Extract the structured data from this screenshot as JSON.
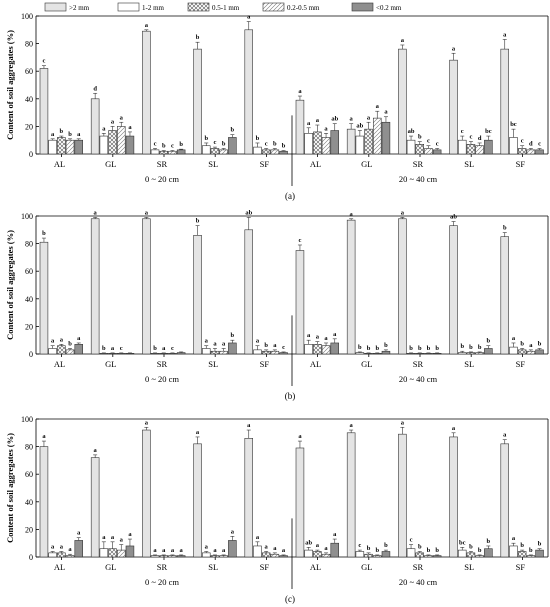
{
  "chart_data": {
    "type": "bar",
    "legend": {
      "placement": "top",
      "entries": [
        ">2 mm",
        "1-2 mm",
        "0.5-1 mm",
        "0.2-0.5 mm",
        "<0.2 mm"
      ]
    },
    "ylabel": "Content of soil aggregates (%)",
    "ylim": [
      0,
      100
    ],
    "yticks": [
      "0",
      "20",
      "40",
      "60",
      "80",
      "100"
    ],
    "categories": [
      "AL",
      "GL",
      "SR",
      "SL",
      "SF",
      "AL",
      "GL",
      "SR",
      "SL",
      "SF"
    ],
    "depth_labels": [
      "0 ~ 20 cm",
      "20 ~ 40 cm"
    ],
    "colors": [
      "#e4e4e4",
      "#ffffff",
      "#d0d0d0",
      "#f2f2f2",
      "#8f8f8f"
    ],
    "panels": [
      {
        "label": "(a)",
        "values": [
          [
            62,
            10,
            12,
            10,
            10
          ],
          [
            40,
            13,
            17,
            20,
            13
          ],
          [
            89,
            3,
            2,
            2,
            3
          ],
          [
            76,
            6,
            4,
            3,
            12
          ],
          [
            90,
            5,
            3,
            3,
            2
          ],
          [
            39,
            15,
            16,
            12,
            17
          ],
          [
            18,
            13,
            18,
            26,
            23
          ],
          [
            76,
            10,
            7,
            4,
            3
          ],
          [
            68,
            10,
            7,
            6,
            10
          ],
          [
            76,
            12,
            4,
            3,
            3
          ]
        ],
        "errors": [
          [
            2,
            1,
            1,
            1,
            1
          ],
          [
            4,
            2,
            3,
            3,
            3
          ],
          [
            1,
            1,
            0.5,
            0.5,
            0.5
          ],
          [
            5,
            2,
            1,
            1,
            2
          ],
          [
            6,
            3,
            1,
            1,
            0.5
          ],
          [
            3,
            4,
            5,
            3,
            5
          ],
          [
            4,
            4,
            5,
            5,
            4
          ],
          [
            3,
            3,
            2,
            2,
            1
          ],
          [
            5,
            3,
            2,
            2,
            3
          ],
          [
            7,
            6,
            2,
            1,
            1
          ]
        ],
        "letters": [
          [
            "c",
            "a",
            "b",
            "b",
            "a"
          ],
          [
            "d",
            "a",
            "a",
            "a",
            "a"
          ],
          [
            "a",
            "c",
            "b",
            "c",
            "b"
          ],
          [
            "b",
            "b",
            "c",
            "b",
            "b"
          ],
          [
            "a",
            "b",
            "c",
            "b",
            "b"
          ],
          [
            "a",
            "a",
            "a",
            "a",
            "ab"
          ],
          [
            "a",
            "ab",
            "a",
            "a",
            "a"
          ],
          [
            "a",
            "ab",
            "b",
            "c",
            "c"
          ],
          [
            "a",
            "c",
            "c",
            "d",
            "bc"
          ],
          [
            "a",
            "bc",
            "c",
            "d",
            "c"
          ]
        ]
      },
      {
        "label": "(b)",
        "values": [
          [
            81,
            4,
            6,
            3,
            7
          ],
          [
            98,
            0.5,
            0.5,
            0.5,
            0.5
          ],
          [
            98,
            0.5,
            0.5,
            0.5,
            1
          ],
          [
            86,
            4,
            2,
            2,
            8
          ],
          [
            90,
            3,
            2,
            2,
            1
          ],
          [
            75,
            7,
            7,
            6,
            8
          ],
          [
            97,
            1,
            0.5,
            0.5,
            2
          ],
          [
            98,
            0.5,
            0.5,
            0.5,
            0.5
          ],
          [
            93,
            1,
            1,
            1,
            4
          ],
          [
            85,
            5,
            3,
            2,
            3
          ]
        ],
        "errors": [
          [
            3,
            2,
            1,
            1,
            1
          ],
          [
            1,
            0.3,
            0.3,
            0.3,
            0.3
          ],
          [
            1,
            0.3,
            0.3,
            0.3,
            0.5
          ],
          [
            7,
            2,
            2,
            2,
            2
          ],
          [
            9,
            3,
            1,
            1,
            0.5
          ],
          [
            4,
            3,
            2,
            2,
            3
          ],
          [
            1,
            0.5,
            0.3,
            0.3,
            1
          ],
          [
            1,
            0.3,
            0.3,
            0.3,
            0.3
          ],
          [
            3,
            1,
            0.5,
            0.5,
            2
          ],
          [
            3,
            3,
            1,
            1,
            1
          ]
        ],
        "letters": [
          [
            "b",
            "a",
            "a",
            "b",
            "a"
          ],
          [
            "a",
            "b",
            "a",
            "c",
            ""
          ],
          [
            "a",
            "b",
            "a",
            "c",
            ""
          ],
          [
            "b",
            "a",
            "a",
            "a",
            "b"
          ],
          [
            "ab",
            "a",
            "b",
            "a",
            "c"
          ],
          [
            "c",
            "a",
            "a",
            "a",
            "a"
          ],
          [
            "a",
            "b",
            "b",
            "b",
            "b"
          ],
          [
            "a",
            "b",
            "b",
            "b",
            "b"
          ],
          [
            "ab",
            "b",
            "b",
            "b",
            "b"
          ],
          [
            "b",
            "a",
            "b",
            "a",
            "b"
          ]
        ]
      },
      {
        "label": "(c)",
        "values": [
          [
            80,
            3,
            3,
            1,
            12
          ],
          [
            72,
            6,
            6,
            5,
            8
          ],
          [
            92,
            1,
            1,
            1,
            1
          ],
          [
            82,
            3,
            1,
            1,
            12
          ],
          [
            86,
            8,
            3,
            2,
            1
          ],
          [
            79,
            5,
            4,
            2,
            10
          ],
          [
            90,
            4,
            2,
            1,
            4
          ],
          [
            89,
            6,
            3,
            1,
            1
          ],
          [
            87,
            5,
            3,
            1,
            6
          ],
          [
            82,
            8,
            4,
            1,
            5
          ]
        ],
        "errors": [
          [
            4,
            1,
            1,
            1,
            2
          ],
          [
            2,
            5,
            5,
            4,
            5
          ],
          [
            2,
            0.5,
            0.5,
            0.5,
            0.5
          ],
          [
            5,
            1,
            0.5,
            0.5,
            3
          ],
          [
            6,
            3,
            1,
            1,
            0.5
          ],
          [
            5,
            2,
            1,
            1,
            3
          ],
          [
            2,
            1,
            1,
            0.5,
            1
          ],
          [
            5,
            3,
            1,
            0.5,
            0.5
          ],
          [
            3,
            2,
            1,
            0.5,
            2
          ],
          [
            3,
            2,
            1,
            0.5,
            1
          ]
        ],
        "letters": [
          [
            "a",
            "a",
            "a",
            "a",
            "a"
          ],
          [
            "a",
            "a",
            "a",
            "a",
            "a"
          ],
          [
            "a",
            "a",
            "a",
            "a",
            "a"
          ],
          [
            "a",
            "a",
            "a",
            "a",
            "a"
          ],
          [
            "a",
            "a",
            "a",
            "a",
            "a"
          ],
          [
            "a",
            "ab",
            "a",
            "a",
            "a"
          ],
          [
            "a",
            "c",
            "b",
            "b",
            "b"
          ],
          [
            "a",
            "c",
            "b",
            "b",
            "b"
          ],
          [
            "a",
            "bc",
            "b",
            "b",
            "b"
          ],
          [
            "a",
            "a",
            "b",
            "b",
            "b"
          ]
        ]
      }
    ]
  }
}
